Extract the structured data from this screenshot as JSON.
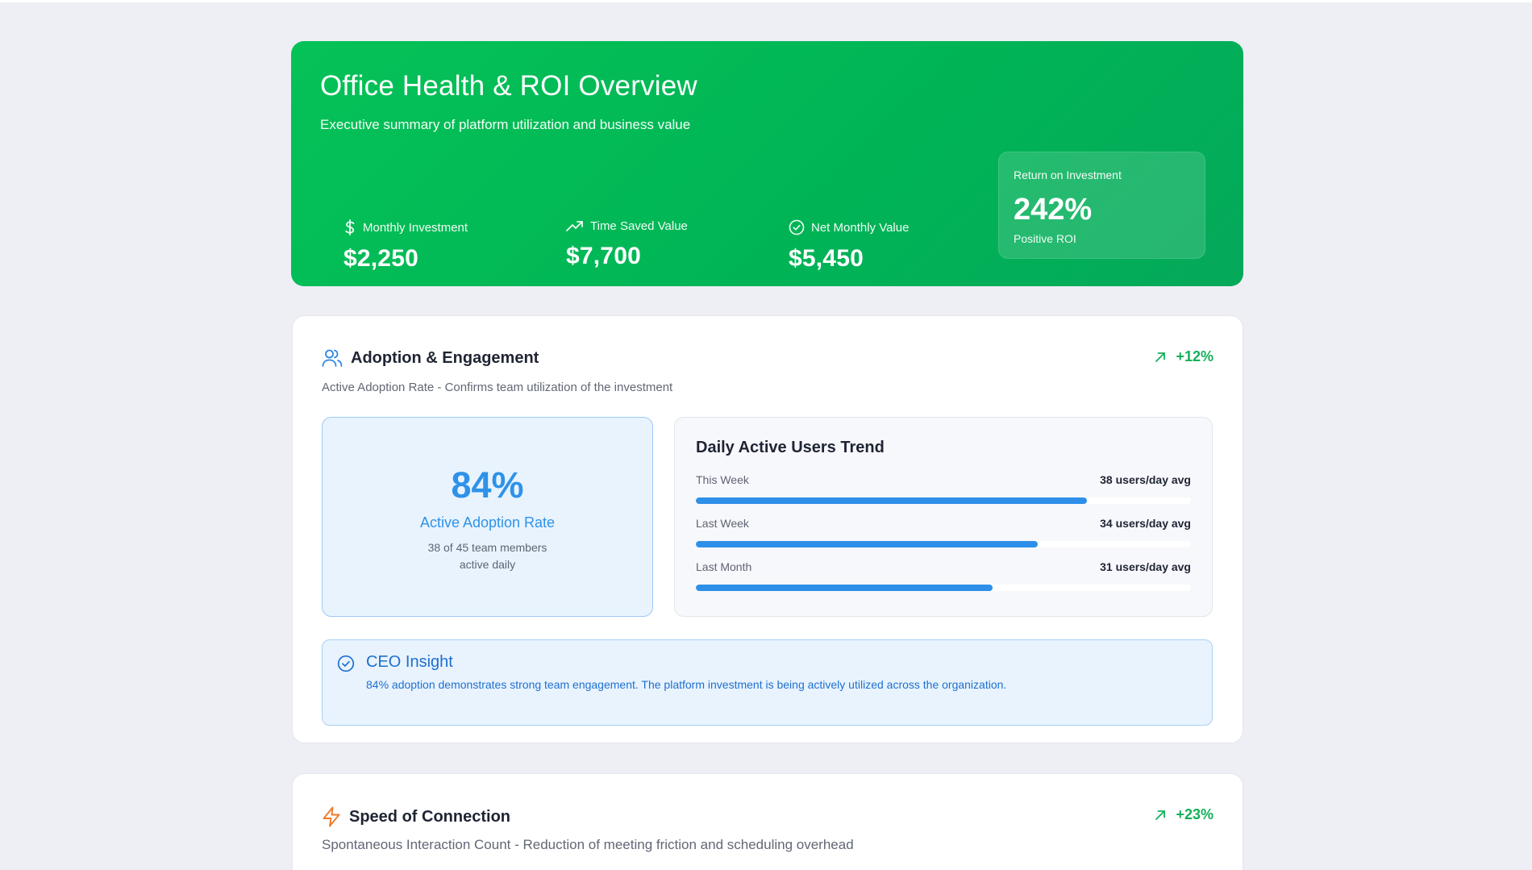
{
  "hero": {
    "title": "Office Health & ROI Overview",
    "subtitle": "Executive summary of platform utilization and business value",
    "metrics": [
      {
        "label": "Monthly Investment",
        "value": "$2,250",
        "icon": "dollar-icon"
      },
      {
        "label": "Time Saved Value",
        "value": "$7,700",
        "icon": "trending-up-icon"
      },
      {
        "label": "Net Monthly Value",
        "value": "$5,450",
        "icon": "check-circle-icon"
      }
    ],
    "roi": {
      "label": "Return on Investment",
      "value": "242%",
      "note": "Positive ROI"
    }
  },
  "adoption": {
    "title": "Adoption & Engagement",
    "icon": "users-icon",
    "trend": "+12%",
    "description": "Active Adoption Rate - Confirms team utilization of the investment",
    "rate": {
      "value": "84%",
      "label": "Active Adoption Rate",
      "sub_line1": "38 of 45 team members",
      "sub_line2": "active daily"
    },
    "daily_trend": {
      "title": "Daily Active Users Trend",
      "rows": [
        {
          "label": "This Week",
          "value": "38 users/day avg",
          "fill": 0.79
        },
        {
          "label": "Last Week",
          "value": "34 users/day avg",
          "fill": 0.69
        },
        {
          "label": "Last Month",
          "value": "31 users/day avg",
          "fill": 0.6
        }
      ]
    },
    "insight": {
      "title": "CEO Insight",
      "text": "84% adoption demonstrates strong team engagement. The platform investment is being actively utilized across the organization."
    }
  },
  "speed": {
    "title": "Speed of Connection",
    "icon": "lightning-icon",
    "trend": "+23%",
    "description": "Spontaneous Interaction Count - Reduction of meeting friction and scheduling overhead"
  },
  "colors": {
    "hero_green": "#05c257",
    "accent_blue": "#2f92e8",
    "trend_green": "#13b05a",
    "lightning_orange": "#f07a2a"
  }
}
